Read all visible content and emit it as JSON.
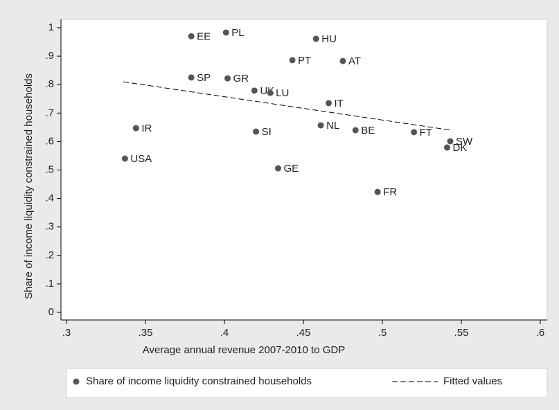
{
  "chart_data": {
    "type": "scatter",
    "x_label": "Average annual revenue 2007-2010 to GDP",
    "y_label": "Share of income liquidity constrained households",
    "xlim": [
      0.3,
      0.6
    ],
    "xticks": [
      {
        "value": 0.3,
        "label": ".3"
      },
      {
        "value": 0.35,
        "label": ".35"
      },
      {
        "value": 0.4,
        "label": ".4"
      },
      {
        "value": 0.45,
        "label": ".45"
      },
      {
        "value": 0.5,
        "label": ".5"
      },
      {
        "value": 0.55,
        "label": ".55"
      },
      {
        "value": 0.6,
        "label": ".6"
      }
    ],
    "ylim": [
      0,
      1
    ],
    "yticks": [
      0,
      {
        "value": 0.1,
        "label": ".1"
      },
      {
        "value": 0.2,
        "label": ".2"
      },
      {
        "value": 0.3,
        "label": ".3"
      },
      {
        "value": 0.4,
        "label": ".4"
      },
      {
        "value": 0.5,
        "label": ".5"
      },
      {
        "value": 0.6,
        "label": ".6"
      },
      {
        "value": 0.7,
        "label": ".7"
      },
      {
        "value": 0.8,
        "label": ".8"
      },
      {
        "value": 0.9,
        "label": ".9"
      },
      1
    ],
    "series": [
      {
        "name": "Share of income liquidity constrained households",
        "color": "#555555",
        "labels": [
          "EE",
          "PL",
          "HU",
          "PT",
          "AT",
          "SP",
          "GR",
          "UK",
          "LU",
          "IT",
          "IR",
          "SI",
          "NL",
          "BE",
          "FT",
          "SW",
          "DK",
          "USA",
          "GE",
          "FR"
        ],
        "x": [
          0.379,
          0.401,
          0.458,
          0.443,
          0.475,
          0.379,
          0.402,
          0.419,
          0.429,
          0.466,
          0.344,
          0.42,
          0.461,
          0.483,
          0.52,
          0.543,
          0.541,
          0.337,
          0.434,
          0.497
        ],
        "values": [
          0.97,
          0.983,
          0.961,
          0.886,
          0.883,
          0.825,
          0.822,
          0.779,
          0.771,
          0.735,
          0.647,
          0.635,
          0.657,
          0.64,
          0.633,
          0.601,
          0.579,
          0.54,
          0.506,
          0.423
        ]
      },
      {
        "name": "Fitted values",
        "type": "line",
        "color": "#000000",
        "x": [
          0.336,
          0.5435
        ],
        "values": [
          0.81,
          0.64
        ]
      }
    ]
  }
}
